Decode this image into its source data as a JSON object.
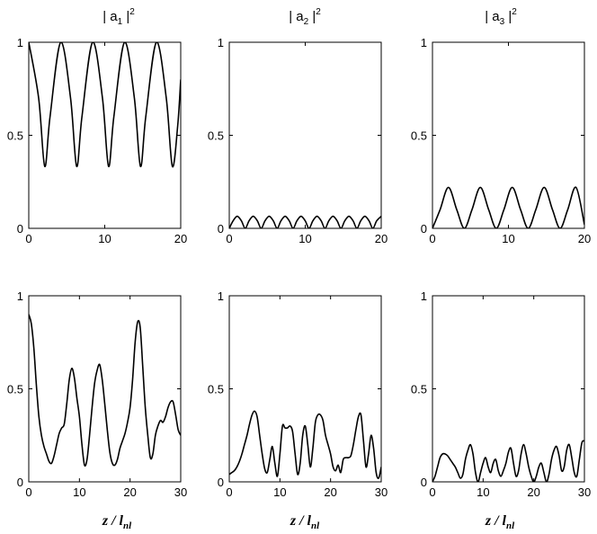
{
  "figure": {
    "column_titles": [
      {
        "pre": "| a",
        "sub": "1",
        "post": " |",
        "sup": "2"
      },
      {
        "pre": "| a",
        "sub": "2",
        "post": " |",
        "sup": "2"
      },
      {
        "pre": "| a",
        "sub": "3",
        "post": " |",
        "sup": "2"
      }
    ],
    "xlabel": {
      "main": "z / l",
      "sub": "nl"
    },
    "line_color": "#000000"
  },
  "chart_data": [
    {
      "type": "line",
      "title": "| a1 |^2",
      "xlim": [
        0,
        20
      ],
      "ylim": [
        0,
        1
      ],
      "xticks": [
        0,
        10,
        20
      ],
      "yticks": [
        0,
        0.5,
        1
      ],
      "grid": false,
      "x": [
        0,
        1.3,
        2.1,
        2.8,
        4.2,
        5.5,
        6.3,
        7.0,
        8.4,
        9.7,
        10.5,
        11.2,
        12.6,
        13.9,
        14.7,
        15.4,
        16.8,
        18.1,
        18.9,
        19.6,
        20
      ],
      "y": [
        1,
        0.7,
        0.333,
        0.6,
        1,
        0.7,
        0.333,
        0.6,
        1,
        0.7,
        0.333,
        0.6,
        1,
        0.7,
        0.333,
        0.6,
        1,
        0.7,
        0.333,
        0.55,
        0.8
      ]
    },
    {
      "type": "line",
      "title": "| a2 |^2",
      "xlim": [
        0,
        20
      ],
      "ylim": [
        0,
        1
      ],
      "xticks": [
        0,
        10,
        20
      ],
      "yticks": [
        0,
        0.5,
        1
      ],
      "grid": false,
      "x": [
        0,
        0.5,
        1.05,
        1.6,
        2.1,
        2.6,
        3.15,
        3.7,
        4.2,
        4.7,
        5.25,
        5.8,
        6.3,
        6.8,
        7.35,
        7.9,
        8.4,
        8.9,
        9.45,
        10.0,
        10.5,
        11.0,
        11.55,
        12.1,
        12.6,
        13.1,
        13.65,
        14.2,
        14.7,
        15.2,
        15.75,
        16.3,
        16.8,
        17.3,
        17.85,
        18.4,
        18.9,
        19.4,
        20
      ],
      "y": [
        0,
        0.04,
        0.065,
        0.04,
        0,
        0.04,
        0.065,
        0.04,
        0,
        0.04,
        0.065,
        0.04,
        0,
        0.04,
        0.065,
        0.04,
        0,
        0.04,
        0.065,
        0.04,
        0,
        0.04,
        0.065,
        0.04,
        0,
        0.04,
        0.065,
        0.04,
        0,
        0.04,
        0.065,
        0.04,
        0,
        0.04,
        0.065,
        0.04,
        0,
        0.04,
        0.065
      ]
    },
    {
      "type": "line",
      "title": "| a3 |^2",
      "xlim": [
        0,
        20
      ],
      "ylim": [
        0,
        1
      ],
      "xticks": [
        0,
        10,
        20
      ],
      "yticks": [
        0,
        0.5,
        1
      ],
      "grid": false,
      "x": [
        0,
        1.0,
        2.1,
        3.2,
        4.2,
        5.2,
        6.3,
        7.4,
        8.4,
        9.4,
        10.5,
        11.6,
        12.6,
        13.6,
        14.7,
        15.8,
        16.8,
        17.8,
        18.9,
        20
      ],
      "y": [
        0,
        0.1,
        0.22,
        0.1,
        0,
        0.1,
        0.22,
        0.1,
        0,
        0.1,
        0.22,
        0.1,
        0,
        0.1,
        0.22,
        0.1,
        0,
        0.1,
        0.22,
        0.02
      ]
    },
    {
      "type": "line",
      "title": "",
      "xlim": [
        0,
        30
      ],
      "ylim": [
        0,
        1
      ],
      "xticks": [
        0,
        10,
        20,
        30
      ],
      "yticks": [
        0,
        0.5,
        1
      ],
      "grid": false,
      "x": [
        0,
        0.5,
        1,
        1.5,
        2,
        2.5,
        3,
        3.5,
        4,
        4.5,
        5,
        5.5,
        6,
        6.5,
        7,
        7.5,
        8,
        8.5,
        9,
        9.5,
        10,
        10.5,
        11,
        11.5,
        12,
        12.5,
        13,
        13.5,
        14,
        14.5,
        15,
        15.5,
        16,
        16.5,
        17,
        17.5,
        18,
        18.5,
        19,
        19.5,
        20,
        20.5,
        21,
        21.5,
        22,
        22.5,
        23,
        23.5,
        24,
        24.5,
        25,
        25.5,
        26,
        26.5,
        27,
        27.5,
        28,
        28.5,
        29,
        29.5,
        30
      ],
      "y": [
        0.9,
        0.85,
        0.72,
        0.52,
        0.35,
        0.25,
        0.19,
        0.15,
        0.11,
        0.1,
        0.14,
        0.2,
        0.26,
        0.29,
        0.31,
        0.42,
        0.55,
        0.61,
        0.56,
        0.45,
        0.35,
        0.2,
        0.09,
        0.12,
        0.25,
        0.4,
        0.53,
        0.6,
        0.63,
        0.55,
        0.42,
        0.28,
        0.16,
        0.1,
        0.09,
        0.12,
        0.18,
        0.22,
        0.26,
        0.32,
        0.4,
        0.55,
        0.75,
        0.86,
        0.83,
        0.62,
        0.4,
        0.25,
        0.13,
        0.15,
        0.25,
        0.3,
        0.33,
        0.32,
        0.35,
        0.4,
        0.43,
        0.43,
        0.36,
        0.28,
        0.25
      ]
    },
    {
      "type": "line",
      "title": "",
      "xlim": [
        0,
        30
      ],
      "ylim": [
        0,
        1
      ],
      "xticks": [
        0,
        10,
        20,
        30
      ],
      "yticks": [
        0,
        0.5,
        1
      ],
      "grid": false,
      "x": [
        0,
        0.5,
        1,
        1.5,
        2,
        2.5,
        3,
        3.5,
        4,
        4.5,
        5,
        5.5,
        6,
        6.5,
        7,
        7.5,
        8,
        8.5,
        9,
        9.5,
        10,
        10.5,
        11,
        11.5,
        12,
        12.5,
        13,
        13.5,
        14,
        14.5,
        15,
        15.5,
        16,
        16.5,
        17,
        17.5,
        18,
        18.5,
        19,
        19.5,
        20,
        20.5,
        21,
        21.5,
        22,
        22.5,
        23,
        23.5,
        24,
        24.5,
        25,
        25.5,
        26,
        26.5,
        27,
        27.5,
        28,
        28.5,
        29,
        29.5,
        30
      ],
      "y": [
        0.04,
        0.05,
        0.06,
        0.08,
        0.11,
        0.15,
        0.2,
        0.25,
        0.31,
        0.36,
        0.38,
        0.35,
        0.25,
        0.15,
        0.07,
        0.05,
        0.12,
        0.19,
        0.1,
        0.03,
        0.15,
        0.3,
        0.29,
        0.29,
        0.3,
        0.27,
        0.15,
        0.04,
        0.1,
        0.25,
        0.3,
        0.2,
        0.08,
        0.18,
        0.32,
        0.36,
        0.36,
        0.33,
        0.25,
        0.2,
        0.15,
        0.08,
        0.06,
        0.09,
        0.05,
        0.12,
        0.13,
        0.13,
        0.14,
        0.2,
        0.28,
        0.35,
        0.36,
        0.22,
        0.08,
        0.15,
        0.25,
        0.18,
        0.05,
        0.02,
        0.08
      ]
    },
    {
      "type": "line",
      "title": "",
      "xlim": [
        0,
        30
      ],
      "ylim": [
        0,
        1
      ],
      "xticks": [
        0,
        10,
        20,
        30
      ],
      "yticks": [
        0,
        0.5,
        1
      ],
      "grid": false,
      "x": [
        0,
        0.5,
        1,
        1.5,
        2,
        2.5,
        3,
        3.5,
        4,
        4.5,
        5,
        5.5,
        6,
        6.5,
        7,
        7.5,
        8,
        8.5,
        9,
        9.5,
        10,
        10.5,
        11,
        11.5,
        12,
        12.5,
        13,
        13.5,
        14,
        14.5,
        15,
        15.5,
        16,
        16.5,
        17,
        17.5,
        18,
        18.5,
        19,
        19.5,
        20,
        20.5,
        21,
        21.5,
        22,
        22.5,
        23,
        23.5,
        24,
        24.5,
        25,
        25.5,
        26,
        26.5,
        27,
        27.5,
        28,
        28.5,
        29,
        29.5,
        30
      ],
      "y": [
        0,
        0.03,
        0.08,
        0.13,
        0.15,
        0.15,
        0.14,
        0.12,
        0.1,
        0.08,
        0.05,
        0.02,
        0.04,
        0.12,
        0.17,
        0.2,
        0.15,
        0.05,
        0,
        0.05,
        0.1,
        0.13,
        0.08,
        0.05,
        0.1,
        0.12,
        0.06,
        0.03,
        0.06,
        0.1,
        0.16,
        0.18,
        0.1,
        0.03,
        0.06,
        0.15,
        0.2,
        0.15,
        0.08,
        0.03,
        0,
        0.03,
        0.08,
        0.1,
        0.05,
        0.0,
        0.04,
        0.12,
        0.17,
        0.19,
        0.14,
        0.06,
        0.08,
        0.17,
        0.2,
        0.13,
        0.05,
        0.03,
        0.12,
        0.21,
        0.22
      ]
    }
  ]
}
